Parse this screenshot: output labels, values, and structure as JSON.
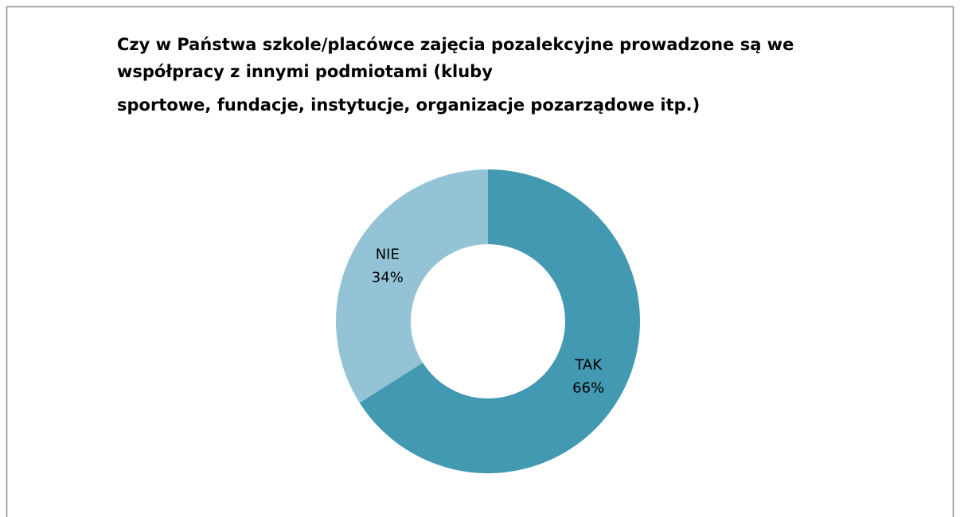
{
  "chart_data": {
    "type": "donut",
    "title": [
      "Czy w Państwa szkole/placówce zajęcia pozalekcyjne prowadzone są we",
      "współpracy z innymi podmiotami (kluby",
      "sportowe, fundacje, instytucje, organizacje pozarządowe itp.)"
    ],
    "categories": [
      "TAK",
      "NIE"
    ],
    "values": [
      66,
      34
    ],
    "value_labels": [
      "66%",
      "34%"
    ],
    "colors": [
      "#4399b1",
      "#93c3d5"
    ]
  }
}
